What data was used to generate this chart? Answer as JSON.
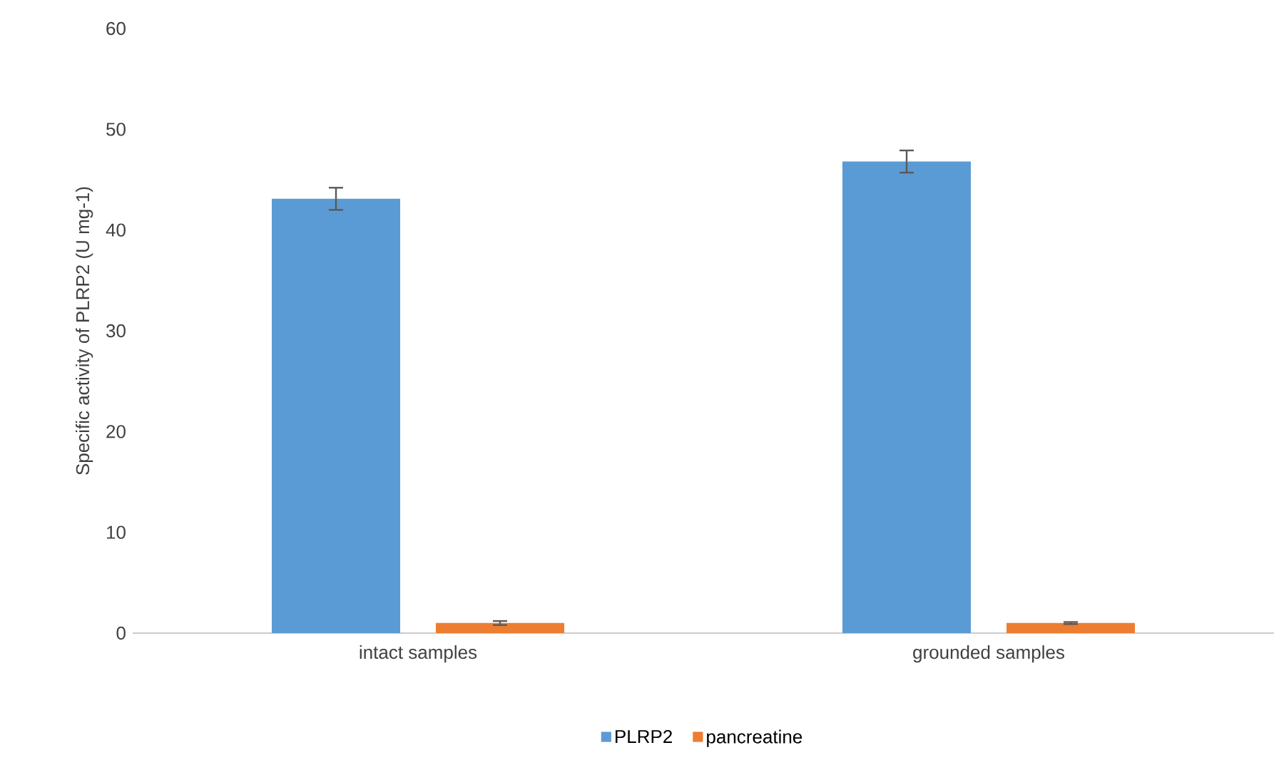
{
  "chart_data": {
    "type": "bar",
    "ylabel": "Specific activity of PLRP2 (U mg-1)",
    "categories": [
      "intact samples",
      "grounded samples"
    ],
    "series": [
      {
        "name": "PLRP2",
        "color": "#5b9bd5",
        "values": [
          43.1,
          46.8
        ],
        "errors": [
          1.1,
          1.1
        ]
      },
      {
        "name": "pancreatine",
        "color": "#ed7d31",
        "values": [
          1.0,
          1.0
        ],
        "errors": [
          0.2,
          0.1
        ]
      }
    ],
    "ylim": [
      0,
      60
    ],
    "yticks": [
      0,
      10,
      20,
      30,
      40,
      50,
      60
    ],
    "legend": "bottom"
  }
}
